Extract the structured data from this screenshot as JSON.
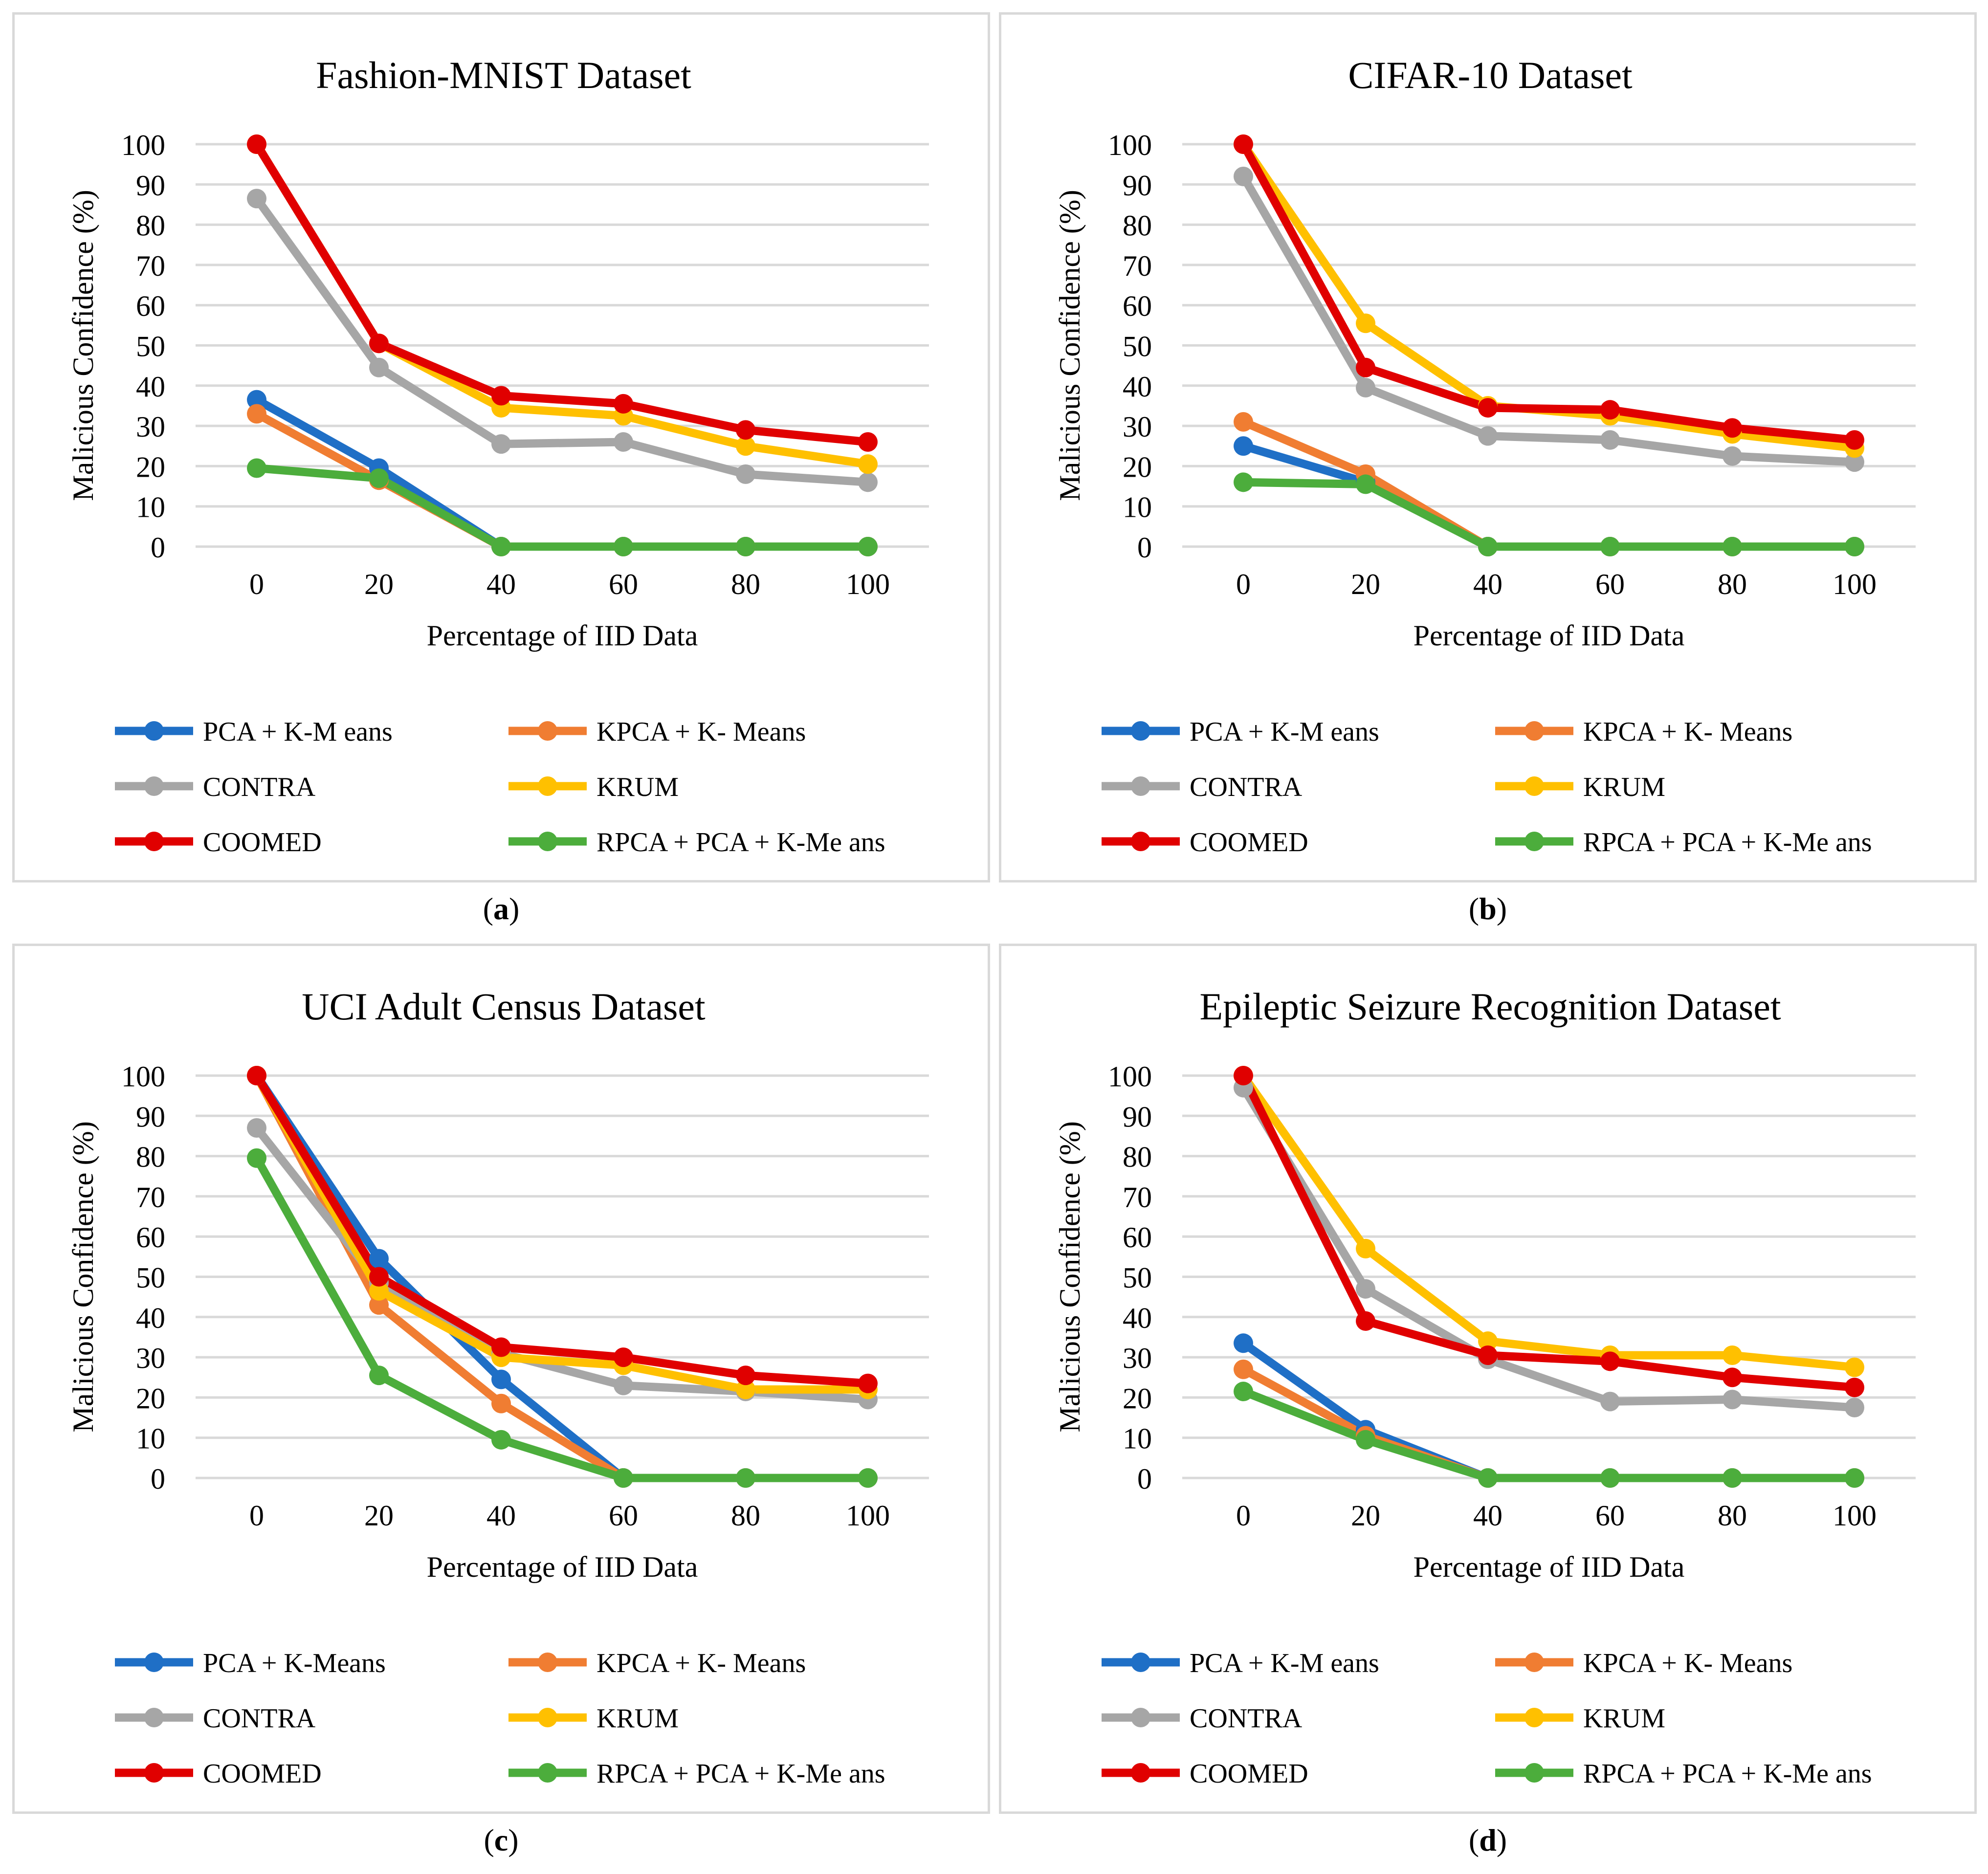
{
  "figure": {
    "panels": [
      {
        "id": "a",
        "caption_label": "a"
      },
      {
        "id": "b",
        "caption_label": "b"
      },
      {
        "id": "c",
        "caption_label": "c"
      },
      {
        "id": "d",
        "caption_label": "d"
      }
    ]
  },
  "colors": {
    "pca_kmeans": "#1f6fc6",
    "kpca_kmeans": "#f07d32",
    "contra": "#a6a6a6",
    "krum": "#ffc000",
    "coomed": "#e00000",
    "rpca_pca_kmeans": "#4cad3c",
    "gridline": "#d9d9d9"
  },
  "chart_data": [
    {
      "type": "line",
      "title": "Fashion-MNIST Dataset",
      "xlabel": "Percentage of IID Data",
      "ylabel": "Malicious Confidence (%)",
      "categories": [
        "0",
        "20",
        "40",
        "60",
        "80",
        "100"
      ],
      "yticks": [
        "0",
        "10",
        "20",
        "30",
        "40",
        "50",
        "60",
        "70",
        "80",
        "90",
        "100"
      ],
      "ylim": [
        0,
        100
      ],
      "grid": true,
      "legend_position": "bottom",
      "series": [
        {
          "name": "PCA + K-M eans",
          "color_key": "pca_kmeans",
          "values": [
            36.5,
            19.5,
            0,
            0,
            0,
            0
          ]
        },
        {
          "name": "KPCA + K- Means",
          "color_key": "kpca_kmeans",
          "values": [
            33,
            16.5,
            0,
            0,
            0,
            0
          ]
        },
        {
          "name": "CONTRA",
          "color_key": "contra",
          "values": [
            86.5,
            44.5,
            25.5,
            26,
            18,
            16
          ]
        },
        {
          "name": "KRUM",
          "color_key": "krum",
          "values": [
            100,
            50.5,
            34.5,
            32.5,
            25,
            20.5
          ]
        },
        {
          "name": "COOMED",
          "color_key": "coomed",
          "values": [
            100,
            50.5,
            37.5,
            35.5,
            29,
            26
          ]
        },
        {
          "name": "RPCA + PCA + K-Me ans",
          "color_key": "rpca_pca_kmeans",
          "values": [
            19.5,
            17,
            0,
            0,
            0,
            0
          ]
        }
      ]
    },
    {
      "type": "line",
      "title": "CIFAR-10 Dataset",
      "xlabel": "Percentage of IID Data",
      "ylabel": "Malicious Confidence (%)",
      "categories": [
        "0",
        "20",
        "40",
        "60",
        "80",
        "100"
      ],
      "yticks": [
        "0",
        "10",
        "20",
        "30",
        "40",
        "50",
        "60",
        "70",
        "80",
        "90",
        "100"
      ],
      "ylim": [
        0,
        100
      ],
      "grid": true,
      "legend_position": "bottom",
      "series": [
        {
          "name": "PCA + K-M eans",
          "color_key": "pca_kmeans",
          "values": [
            25,
            16,
            0,
            0,
            0,
            0
          ]
        },
        {
          "name": "KPCA + K- Means",
          "color_key": "kpca_kmeans",
          "values": [
            31,
            18,
            0,
            0,
            0,
            0
          ]
        },
        {
          "name": "CONTRA",
          "color_key": "contra",
          "values": [
            92,
            39.5,
            27.5,
            26.5,
            22.5,
            21
          ]
        },
        {
          "name": "KRUM",
          "color_key": "krum",
          "values": [
            100,
            55.5,
            35,
            32.5,
            28,
            24.5
          ]
        },
        {
          "name": "COOMED",
          "color_key": "coomed",
          "values": [
            100,
            44.5,
            34.5,
            34,
            29.5,
            26.5
          ]
        },
        {
          "name": "RPCA + PCA + K-Me ans",
          "color_key": "rpca_pca_kmeans",
          "values": [
            16,
            15.5,
            0,
            0,
            0,
            0
          ]
        }
      ]
    },
    {
      "type": "line",
      "title": "UCI Adult Census Dataset",
      "xlabel": "Percentage of IID Data",
      "ylabel": "Malicious Confidence (%)",
      "categories": [
        "0",
        "20",
        "40",
        "60",
        "80",
        "100"
      ],
      "yticks": [
        "0",
        "10",
        "20",
        "30",
        "40",
        "50",
        "60",
        "70",
        "80",
        "90",
        "100"
      ],
      "ylim": [
        0,
        100
      ],
      "grid": true,
      "legend_position": "bottom",
      "series": [
        {
          "name": "PCA + K-Means",
          "color_key": "pca_kmeans",
          "values": [
            100,
            54.5,
            24.5,
            0,
            0,
            0
          ]
        },
        {
          "name": "KPCA + K- Means",
          "color_key": "kpca_kmeans",
          "values": [
            100,
            43,
            18.5,
            0,
            0,
            0
          ]
        },
        {
          "name": "CONTRA",
          "color_key": "contra",
          "values": [
            87,
            48.5,
            31,
            23,
            21.5,
            19.5
          ]
        },
        {
          "name": "KRUM",
          "color_key": "krum",
          "values": [
            100,
            46.5,
            30,
            28,
            22,
            22
          ]
        },
        {
          "name": "COOMED",
          "color_key": "coomed",
          "values": [
            100,
            50,
            32.5,
            30,
            25.5,
            23.5
          ]
        },
        {
          "name": "RPCA + PCA + K-Me ans",
          "color_key": "rpca_pca_kmeans",
          "values": [
            79.5,
            25.5,
            9.5,
            0,
            0,
            0
          ]
        }
      ]
    },
    {
      "type": "line",
      "title": "Epileptic Seizure Recognition Dataset",
      "xlabel": "Percentage of IID Data",
      "ylabel": "Malicious Confidence (%)",
      "categories": [
        "0",
        "20",
        "40",
        "60",
        "80",
        "100"
      ],
      "yticks": [
        "0",
        "10",
        "20",
        "30",
        "40",
        "50",
        "60",
        "70",
        "80",
        "90",
        "100"
      ],
      "ylim": [
        0,
        100
      ],
      "grid": true,
      "legend_position": "bottom",
      "series": [
        {
          "name": "PCA + K-M eans",
          "color_key": "pca_kmeans",
          "values": [
            33.5,
            12,
            0,
            0,
            0,
            0
          ]
        },
        {
          "name": "KPCA + K- Means",
          "color_key": "kpca_kmeans",
          "values": [
            27,
            10.5,
            0,
            0,
            0,
            0
          ]
        },
        {
          "name": "CONTRA",
          "color_key": "contra",
          "values": [
            97,
            47,
            29.5,
            19,
            19.5,
            17.5
          ]
        },
        {
          "name": "KRUM",
          "color_key": "krum",
          "values": [
            100,
            57,
            34,
            30.5,
            30.5,
            27.5
          ]
        },
        {
          "name": "COOMED",
          "color_key": "coomed",
          "values": [
            100,
            39,
            30.5,
            29,
            25,
            22.5
          ]
        },
        {
          "name": "RPCA + PCA + K-Me ans",
          "color_key": "rpca_pca_kmeans",
          "values": [
            21.5,
            9.5,
            0,
            0,
            0,
            0
          ]
        }
      ]
    }
  ]
}
